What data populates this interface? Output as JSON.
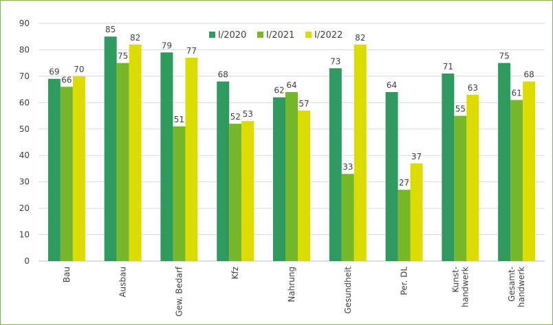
{
  "chart_data": {
    "type": "bar",
    "categories": [
      "Bau",
      "Ausbau",
      "Gew. Bedarf",
      "Kfz",
      "Nahrung",
      "Gesundheit",
      "Per. DL",
      "Kunst-\nhandwerk",
      "Gesamt-\nhandwerk"
    ],
    "series": [
      {
        "name": "I/2020",
        "color": "#2e9a5e",
        "values": [
          69,
          85,
          79,
          68,
          62,
          73,
          64,
          71,
          75
        ]
      },
      {
        "name": "I/2021",
        "color": "#76b82a",
        "values": [
          66,
          75,
          51,
          52,
          64,
          33,
          27,
          55,
          61
        ]
      },
      {
        "name": "I/2022",
        "color": "#dcdc00",
        "values": [
          70,
          82,
          77,
          53,
          57,
          82,
          37,
          63,
          68
        ]
      }
    ],
    "ylim": [
      0,
      90
    ],
    "yticks": [
      0,
      10,
      20,
      30,
      40,
      50,
      60,
      70,
      80,
      90
    ],
    "grid": true,
    "legend_position": "top-center",
    "title": "",
    "xlabel": "",
    "ylabel": ""
  }
}
